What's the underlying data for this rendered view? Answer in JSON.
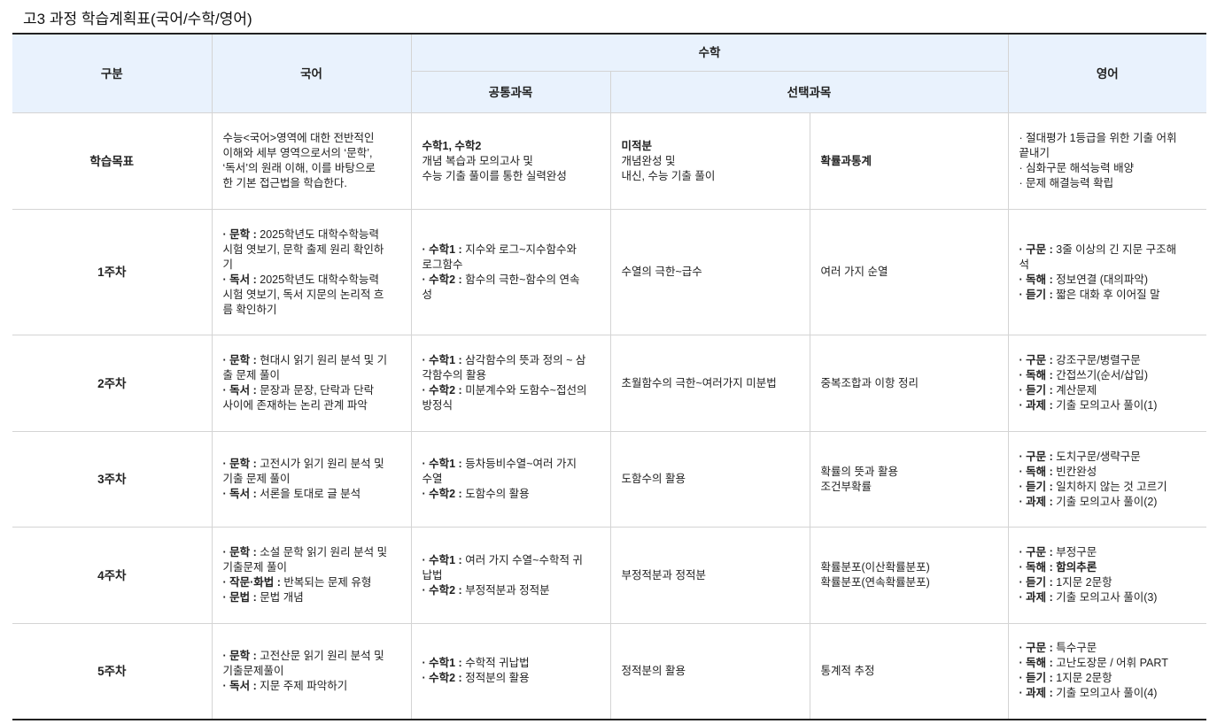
{
  "title": "고3 과정 학습계획표(국어/수학/영어)",
  "header": {
    "col_category": "구분",
    "col_korean": "국어",
    "col_math": "수학",
    "col_math_common": "공통과목",
    "col_math_elective": "선택과목",
    "col_english": "영어"
  },
  "rows": [
    {
      "label": "학습목표",
      "cells": [
        [
          {
            "t": "수능<국어>영역에 대한 전반적인"
          },
          {
            "t": "이해와 세부 영역으로서의 ‘문학’,"
          },
          {
            "t": "‘독서’의 원래 이해, 이를 바탕으로"
          },
          {
            "t": "한 기본 접근법을 학습한다."
          }
        ],
        [
          {
            "t": "수학1, 수학2",
            "bold": true
          },
          {
            "t": "개념 복습과 모의고사 및"
          },
          {
            "t": "수능 기출 풀이를 통한 실력완성"
          }
        ],
        [
          {
            "t": "미적분",
            "bold": true
          },
          {
            "t": "개념완성 및"
          },
          {
            "t": "내신, 수능 기출 풀이"
          }
        ],
        [
          {
            "t": "확률과통계",
            "bold": true
          }
        ],
        [
          {
            "t": "· 절대평가 1등급을 위한 기출 어휘"
          },
          {
            "t": "끝내기"
          },
          {
            "t": "· 심화구문 해석능력 배양"
          },
          {
            "t": "· 문제 해결능력 확립"
          }
        ]
      ]
    },
    {
      "label": "1주차",
      "cells": [
        [
          {
            "k": "· 문학 : ",
            "t": "2025학년도 대학수학능력"
          },
          {
            "t": "시험 엿보기, 문학 출제 원리 확인하"
          },
          {
            "t": "기"
          },
          {
            "k": "· 독서 : ",
            "t": "2025학년도 대학수학능력"
          },
          {
            "t": "시험 엿보기, 독서 지문의 논리적 흐"
          },
          {
            "t": "름 확인하기"
          }
        ],
        [
          {
            "k": "· 수학1 : ",
            "t": "지수와 로그~지수함수와"
          },
          {
            "t": "로그함수"
          },
          {
            "k": "· 수학2 : ",
            "t": "함수의 극한~함수의 연속"
          },
          {
            "t": "성"
          }
        ],
        [
          {
            "t": "수열의 극한~급수"
          }
        ],
        [
          {
            "t": "여러 가지 순열"
          }
        ],
        [
          {
            "k": "· 구문 : ",
            "t": "3줄 이상의 긴 지문 구조해"
          },
          {
            "t": "석"
          },
          {
            "k": "· 독해 : ",
            "t": "정보연결 (대의파악)"
          },
          {
            "k": "· 듣기 : ",
            "t": "짧은 대화 후 이어질 말"
          }
        ]
      ]
    },
    {
      "label": "2주차",
      "cells": [
        [
          {
            "k": "· 문학 : ",
            "t": "현대시 읽기 원리 분석 및 기"
          },
          {
            "t": "출 문제 풀이"
          },
          {
            "k": "· 독서 : ",
            "t": "문장과 문장, 단락과 단락"
          },
          {
            "t": "사이에 존재하는 논리 관계 파악"
          }
        ],
        [
          {
            "k": "· 수학1 : ",
            "t": "삼각함수의 뜻과 정의 ~ 삼"
          },
          {
            "t": "각함수의 활용"
          },
          {
            "k": "· 수학2 : ",
            "t": "미분계수와 도함수~접선의"
          },
          {
            "t": "방정식"
          }
        ],
        [
          {
            "t": "초월함수의 극한~여러가지 미분법"
          }
        ],
        [
          {
            "t": "중복조합과 이항 정리"
          }
        ],
        [
          {
            "k": "· 구문 : ",
            "t": "강조구문/병렬구문"
          },
          {
            "k": "· 독해 : ",
            "t": "간접쓰기(순서/삽입)"
          },
          {
            "k": "· 듣기 : ",
            "t": "계산문제"
          },
          {
            "k": "· 과제 : ",
            "t": "기출 모의고사 풀이(1)"
          }
        ]
      ]
    },
    {
      "label": "3주차",
      "cells": [
        [
          {
            "k": "· 문학 : ",
            "t": "고전시가 읽기 원리 분석 및"
          },
          {
            "t": "기출 문제 풀이"
          },
          {
            "k": "· 독서 : ",
            "t": "서론을 토대로 글 분석"
          }
        ],
        [
          {
            "k": "· 수학1 : ",
            "t": "등차등비수열~여러 가지"
          },
          {
            "t": "수열"
          },
          {
            "k": "· 수학2 : ",
            "t": "도함수의 활용"
          }
        ],
        [
          {
            "t": "도함수의 활용"
          }
        ],
        [
          {
            "t": "확률의 뜻과 활용"
          },
          {
            "t": "조건부확률"
          }
        ],
        [
          {
            "k": "· 구문 : ",
            "t": "도치구문/생략구문"
          },
          {
            "k": "· 독해 : ",
            "t": "빈칸완성"
          },
          {
            "k": "· 듣기 : ",
            "t": "일치하지 않는 것 고르기"
          },
          {
            "k": "· 과제 : ",
            "t": "기출 모의고사 풀이(2)"
          }
        ]
      ]
    },
    {
      "label": "4주차",
      "cells": [
        [
          {
            "k": "· 문학 : ",
            "t": "소설 문학 읽기 원리 분석 및"
          },
          {
            "t": "기출문제 풀이"
          },
          {
            "k": "· 작문·화법 : ",
            "t": "반복되는 문제 유형"
          },
          {
            "k": "· 문법 : ",
            "t": "문법 개념"
          }
        ],
        [
          {
            "k": "· 수학1 : ",
            "t": "여러 가지 수열~수학적 귀"
          },
          {
            "t": "납법"
          },
          {
            "k": "· 수학2 : ",
            "t": "부정적분과 정적분"
          }
        ],
        [
          {
            "t": "부정적분과 정적분"
          }
        ],
        [
          {
            "t": "확률분포(이산확률분포)"
          },
          {
            "t": "확률분포(연속확률분포)"
          }
        ],
        [
          {
            "k": "· 구문 : ",
            "t": "부정구문"
          },
          {
            "k": "· 독해 : ",
            "t": "함의추론",
            "bold": true
          },
          {
            "k": "· 듣기 : ",
            "t": "1지문 2문항"
          },
          {
            "k": "· 과제 : ",
            "t": "기출 모의고사 풀이(3)"
          }
        ]
      ]
    },
    {
      "label": "5주차",
      "cells": [
        [
          {
            "k": "· 문학 : ",
            "t": "고전산문 읽기 원리 분석 및"
          },
          {
            "t": "기출문제풀이"
          },
          {
            "k": "· 독서 : ",
            "t": "지문 주제 파악하기"
          }
        ],
        [
          {
            "k": "· 수학1 : ",
            "t": "수학적 귀납법"
          },
          {
            "k": "· 수학2 : ",
            "t": "정적분의 활용"
          }
        ],
        [
          {
            "t": "정적분의 활용"
          }
        ],
        [
          {
            "t": "통계적 추정"
          }
        ],
        [
          {
            "k": "· 구문 : ",
            "t": "특수구문"
          },
          {
            "k": "· 독해 : ",
            "t": "고난도장문 / 어휘 PART"
          },
          {
            "k": "· 듣기 : ",
            "t": "1지문 2문항"
          },
          {
            "k": "· 과제 : ",
            "t": "기출 모의고사 풀이(4)"
          }
        ]
      ]
    }
  ]
}
